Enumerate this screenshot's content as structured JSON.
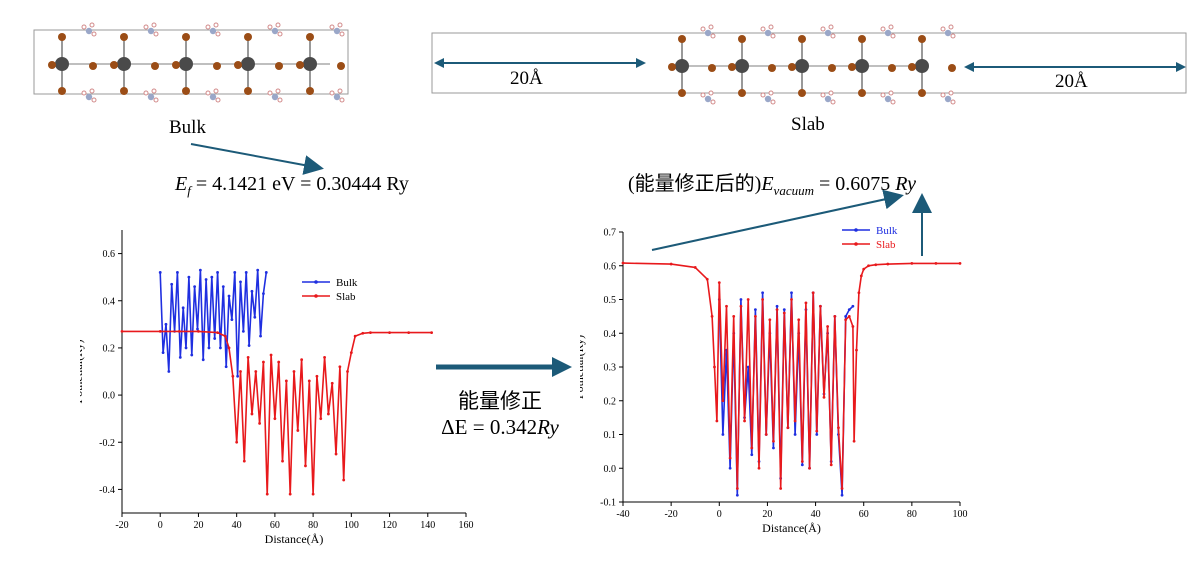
{
  "structures": {
    "bulk_label": "Bulk",
    "slab_label": "Slab",
    "vacuum_left": "20Å",
    "vacuum_right": "20Å"
  },
  "formulas": {
    "ef": {
      "symbol": "E",
      "sub": "f",
      "text": " = 4.1421 eV = 0.30444 Ry"
    },
    "evac": {
      "prefix": "(能量修正后的)",
      "symbol": "E",
      "sub": "vacuum",
      "text": " = 0.6075 ",
      "unit": "Ry"
    }
  },
  "correction": {
    "title": "能量修正",
    "delta_prefix": "ΔE = 0.342",
    "delta_unit": "Ry"
  },
  "colors": {
    "bulk": "#1f2fe0",
    "slab": "#e8191c",
    "arrow": "#1c5a78",
    "frame": "#9a9a9a",
    "atom_large": "#4a4a4a",
    "atom_mid": "#9b4d16",
    "atom_small": "#d28a8a"
  },
  "chart_data": [
    {
      "type": "line",
      "title": "",
      "xlabel": "Distance(Å)",
      "ylabel": "Potnetial(Ry)",
      "xlim": [
        -20,
        160
      ],
      "ylim": [
        -0.5,
        0.7
      ],
      "xticks": [
        -20,
        0,
        20,
        40,
        60,
        80,
        100,
        120,
        140,
        160
      ],
      "yticks": [
        -0.4,
        -0.2,
        0.0,
        0.2,
        0.4,
        0.6
      ],
      "xtick_labels": [
        "-20",
        "0",
        "20",
        "40",
        "60",
        "80",
        "100",
        "120",
        "140",
        "160"
      ],
      "ytick_labels": [
        "-0.4",
        "-0.2",
        "0.0",
        "0.2",
        "0.4",
        "0.6"
      ],
      "legend": {
        "placement": "upper-right",
        "entries": [
          "Bulk",
          "Slab"
        ]
      },
      "series": [
        {
          "name": "Bulk",
          "x": [
            0,
            1.5,
            3,
            4.5,
            6,
            7.5,
            9,
            10.5,
            12,
            13.5,
            15,
            16.5,
            18,
            19.5,
            21,
            22.5,
            24,
            25.5,
            27,
            28.5,
            30,
            31.5,
            33,
            34.5,
            36,
            37.5,
            39,
            40.5,
            42,
            43.5,
            45,
            46.5,
            48,
            49.5,
            51,
            52.5,
            54,
            55.5
          ],
          "y": [
            0.52,
            0.18,
            0.3,
            0.1,
            0.47,
            0.27,
            0.52,
            0.16,
            0.37,
            0.2,
            0.5,
            0.17,
            0.46,
            0.28,
            0.53,
            0.15,
            0.49,
            0.2,
            0.5,
            0.24,
            0.52,
            0.2,
            0.46,
            0.12,
            0.42,
            0.32,
            0.52,
            0.08,
            0.48,
            0.27,
            0.52,
            0.21,
            0.44,
            0.33,
            0.53,
            0.25,
            0.43,
            0.52
          ]
        },
        {
          "name": "Slab",
          "x": [
            -20,
            0,
            10,
            20,
            30,
            34,
            36,
            38,
            40,
            42,
            44,
            46,
            48,
            50,
            52,
            54,
            56,
            58,
            60,
            62,
            64,
            66,
            68,
            70,
            72,
            74,
            76,
            78,
            80,
            82,
            84,
            86,
            88,
            90,
            92,
            94,
            96,
            98,
            100,
            102,
            106,
            110,
            120,
            130,
            142
          ],
          "y": [
            0.27,
            0.27,
            0.27,
            0.27,
            0.265,
            0.25,
            0.2,
            0.08,
            -0.2,
            0.1,
            -0.28,
            0.16,
            -0.08,
            0.1,
            -0.12,
            0.14,
            -0.42,
            0.17,
            -0.1,
            0.14,
            -0.28,
            0.06,
            -0.42,
            0.1,
            -0.15,
            0.15,
            -0.3,
            0.06,
            -0.42,
            0.08,
            -0.1,
            0.16,
            -0.08,
            0.05,
            -0.25,
            0.12,
            -0.36,
            0.1,
            0.18,
            0.25,
            0.262,
            0.265,
            0.265,
            0.265,
            0.265
          ]
        }
      ]
    },
    {
      "type": "line",
      "title": "",
      "xlabel": "Distance(Å)",
      "ylabel": "Potnetial(Ry)",
      "xlim": [
        -40,
        100
      ],
      "ylim": [
        -0.1,
        0.7
      ],
      "xticks": [
        -40,
        -20,
        0,
        20,
        40,
        60,
        80,
        100
      ],
      "yticks": [
        -0.1,
        0.0,
        0.1,
        0.2,
        0.3,
        0.4,
        0.5,
        0.6,
        0.7
      ],
      "xtick_labels": [
        "-40",
        "-20",
        "0",
        "20",
        "40",
        "60",
        "80",
        "100"
      ],
      "ytick_labels": [
        "-0.1",
        "0.0",
        "0.1",
        "0.2",
        "0.3",
        "0.4",
        "0.5",
        "0.6",
        "0.7"
      ],
      "legend": {
        "placement": "top-right",
        "entries": [
          "Bulk",
          "Slab"
        ]
      },
      "series": [
        {
          "name": "Bulk",
          "x": [
            0,
            1.5,
            3,
            4.5,
            6,
            7.5,
            9,
            10.5,
            12,
            13.5,
            15,
            16.5,
            18,
            19.5,
            21,
            22.5,
            24,
            25.5,
            27,
            28.5,
            30,
            31.5,
            33,
            34.5,
            36,
            37.5,
            39,
            40.5,
            42,
            43.5,
            45,
            46.5,
            48,
            49.5,
            51,
            52.5,
            54,
            55.5
          ],
          "y": [
            0.5,
            0.1,
            0.35,
            0.0,
            0.4,
            -0.08,
            0.5,
            0.15,
            0.3,
            0.04,
            0.47,
            0.02,
            0.52,
            0.1,
            0.4,
            0.06,
            0.48,
            -0.03,
            0.47,
            0.12,
            0.52,
            0.1,
            0.4,
            0.01,
            0.47,
            0.0,
            0.52,
            0.1,
            0.48,
            0.22,
            0.4,
            0.02,
            0.45,
            0.1,
            -0.08,
            0.45,
            0.47,
            0.48
          ]
        },
        {
          "name": "Slab",
          "x": [
            -40,
            -20,
            -10,
            -5,
            -3,
            -2,
            -1,
            0,
            1.5,
            3,
            4.5,
            6,
            7.5,
            9,
            10.5,
            12,
            13.5,
            15,
            16.5,
            18,
            19.5,
            21,
            22.5,
            24,
            25.5,
            27,
            28.5,
            30,
            31.5,
            33,
            34.5,
            36,
            37.5,
            39,
            40.5,
            42,
            43.5,
            45,
            46.5,
            48,
            49.5,
            51,
            52.5,
            54,
            55.5,
            56,
            57,
            58,
            59,
            60,
            62,
            65,
            70,
            80,
            90,
            100
          ],
          "y": [
            0.608,
            0.605,
            0.595,
            0.56,
            0.45,
            0.3,
            0.14,
            0.55,
            0.2,
            0.48,
            0.03,
            0.45,
            -0.06,
            0.48,
            0.14,
            0.5,
            0.06,
            0.45,
            0.0,
            0.5,
            0.1,
            0.44,
            0.08,
            0.47,
            -0.06,
            0.46,
            0.12,
            0.5,
            0.14,
            0.44,
            0.02,
            0.49,
            0.0,
            0.52,
            0.11,
            0.48,
            0.21,
            0.42,
            0.01,
            0.45,
            0.12,
            -0.06,
            0.44,
            0.45,
            0.42,
            0.08,
            0.35,
            0.52,
            0.57,
            0.59,
            0.6,
            0.603,
            0.605,
            0.607,
            0.607,
            0.607
          ]
        }
      ]
    }
  ]
}
